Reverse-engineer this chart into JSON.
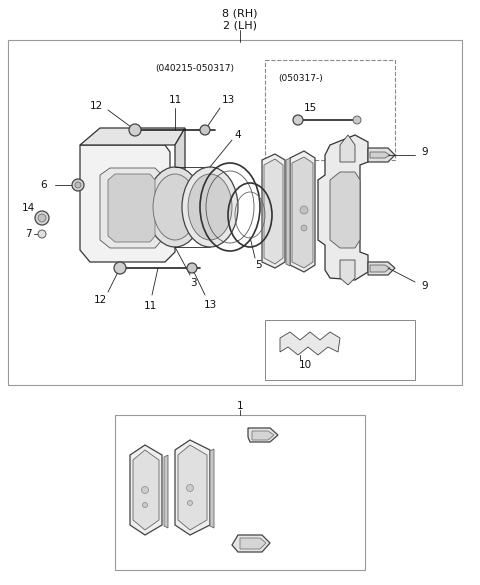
{
  "bg_color": "#ffffff",
  "line_color": "#222222",
  "title_line1": "8 (RH)",
  "title_line2": "2 (LH)",
  "note1": "(040215-050317)",
  "note2": "(050317-)",
  "fig_width": 4.8,
  "fig_height": 5.85,
  "dpi": 100
}
